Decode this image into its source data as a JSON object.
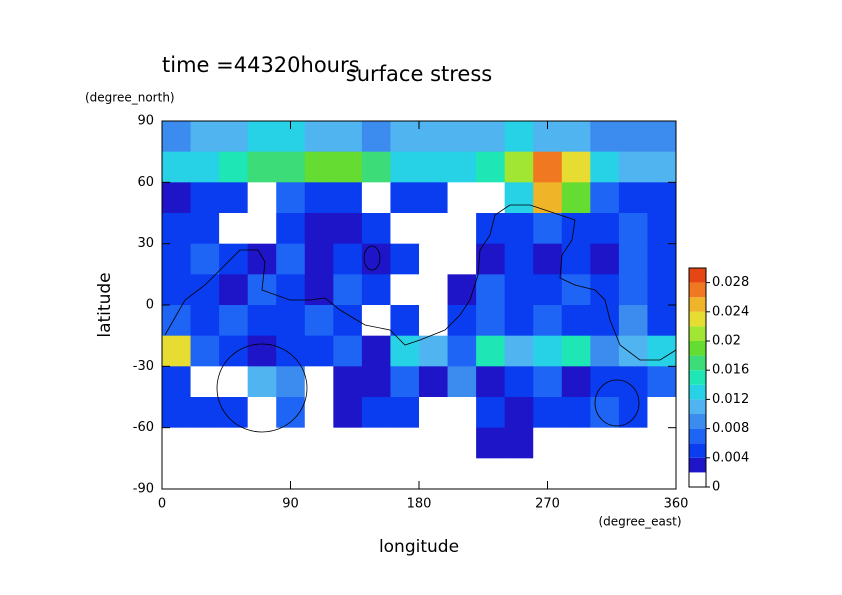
{
  "chart_data": {
    "type": "contour",
    "title": "surface stress",
    "subtitle": "time =44320hours",
    "x_label": "longitude",
    "x_unit": "(degree_east)",
    "y_label": "latitude",
    "y_unit": "(degree_north)",
    "xlim": [
      0,
      360
    ],
    "xticks": [
      0,
      90,
      180,
      270,
      360
    ],
    "ylim": [
      -90,
      90
    ],
    "yticks": [
      90,
      60,
      30,
      0,
      -30,
      -60,
      -90
    ],
    "x": [
      10,
      30,
      50,
      70,
      90,
      110,
      130,
      150,
      170,
      190,
      210,
      230,
      250,
      270,
      290,
      310,
      330,
      350
    ],
    "y": [
      82.5,
      67.5,
      52.5,
      37.5,
      22.5,
      7.5,
      -7.5,
      -22.5,
      -37.5,
      -52.5,
      -67.5,
      -82.5
    ],
    "z": [
      [
        0.009,
        0.01,
        0.011,
        0.012,
        0.012,
        0.011,
        0.01,
        0.009,
        0.01,
        0.011,
        0.01,
        0.011,
        0.012,
        0.011,
        0.01,
        0.009,
        0.009,
        0.009
      ],
      [
        0.012,
        0.013,
        0.014,
        0.016,
        0.016,
        0.018,
        0.018,
        0.016,
        0.013,
        0.012,
        0.012,
        0.014,
        0.02,
        0.026,
        0.022,
        0.012,
        0.01,
        0.01
      ],
      [
        0.003,
        0.004,
        0.005,
        0.001,
        0.006,
        0.004,
        0.005,
        0.001,
        0.004,
        0.005,
        0.001,
        0.001,
        0.012,
        0.024,
        0.018,
        0.006,
        0.005,
        0.004
      ],
      [
        0.005,
        0.004,
        0.001,
        0.001,
        0.005,
        0.002,
        0.003,
        0.004,
        0.001,
        0.001,
        0.001,
        0.004,
        0.004,
        0.007,
        0.005,
        0.004,
        0.006,
        0.004
      ],
      [
        0.004,
        0.006,
        0.004,
        0.002,
        0.007,
        0.003,
        0.005,
        0.003,
        0.004,
        0.001,
        0.001,
        0.003,
        0.005,
        0.003,
        0.005,
        0.002,
        0.007,
        0.005
      ],
      [
        0.004,
        0.005,
        0.003,
        0.006,
        0.005,
        0.003,
        0.006,
        0.005,
        0.001,
        0.001,
        0.002,
        0.006,
        0.004,
        0.005,
        0.006,
        0.004,
        0.007,
        0.004
      ],
      [
        0.006,
        0.005,
        0.006,
        0.004,
        0.005,
        0.007,
        0.005,
        0.001,
        0.005,
        0.001,
        0.004,
        0.006,
        0.004,
        0.006,
        0.005,
        0.004,
        0.008,
        0.004
      ],
      [
        0.022,
        0.007,
        0.005,
        0.002,
        0.004,
        0.005,
        0.006,
        0.003,
        0.012,
        0.01,
        0.006,
        0.015,
        0.01,
        0.012,
        0.014,
        0.008,
        0.01,
        0.012
      ],
      [
        0.004,
        0.001,
        0.001,
        0.01,
        0.008,
        0.001,
        0.003,
        0.002,
        0.006,
        0.002,
        0.008,
        0.003,
        0.004,
        0.006,
        0.003,
        0.005,
        0.004,
        0.006
      ],
      [
        0.005,
        0.004,
        0.004,
        0.001,
        0.006,
        0.001,
        0.003,
        0.004,
        0.005,
        0.001,
        0.001,
        0.004,
        0.003,
        0.005,
        0.004,
        0.006,
        0.004,
        0.001
      ],
      [
        0.001,
        0.001,
        0.001,
        0.001,
        0.001,
        0.001,
        0.001,
        0.001,
        0.001,
        0.001,
        0.001,
        0.003,
        0.003,
        0.001,
        0.001,
        0.001,
        0.001,
        0.001
      ],
      [
        0.001,
        0.001,
        0.001,
        0.001,
        0.001,
        0.001,
        0.001,
        0.001,
        0.001,
        0.001,
        0.001,
        0.001,
        0.001,
        0.001,
        0.001,
        0.001,
        0.001,
        0.001
      ]
    ],
    "levels": [
      0,
      0.002,
      0.004,
      0.006,
      0.008,
      0.01,
      0.012,
      0.014,
      0.016,
      0.018,
      0.02,
      0.022,
      0.024,
      0.026,
      0.028,
      0.03
    ],
    "colors": [
      "#ffffff",
      "#1e14c8",
      "#0a3cf0",
      "#1e64f5",
      "#3c8cf0",
      "#50b4f0",
      "#28d2e6",
      "#1ee6b4",
      "#3cdc78",
      "#64dc32",
      "#a0e632",
      "#e6dc32",
      "#f0b428",
      "#f07820",
      "#e64614"
    ],
    "colorbar_ticks": [
      0,
      0.004,
      0.008,
      0.012,
      0.016,
      0.02,
      0.024,
      0.028
    ]
  }
}
